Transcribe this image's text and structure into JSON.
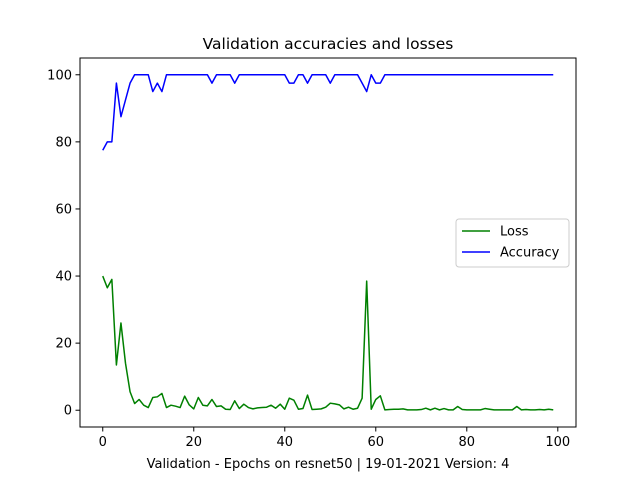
{
  "chart_data": {
    "type": "line",
    "title": "Validation accuracies and losses",
    "xlabel": "Validation - Epochs on resnet50 | 19-01-2021 Version: 4",
    "ylabel": "",
    "xlim": [
      -5,
      104
    ],
    "ylim": [
      -5,
      105
    ],
    "xticks": [
      0,
      20,
      40,
      60,
      80,
      100
    ],
    "yticks": [
      0,
      20,
      40,
      60,
      80,
      100
    ],
    "grid": false,
    "legend_position": "center-right",
    "x": [
      0,
      1,
      2,
      3,
      4,
      5,
      6,
      7,
      8,
      9,
      10,
      11,
      12,
      13,
      14,
      15,
      16,
      17,
      18,
      19,
      20,
      21,
      22,
      23,
      24,
      25,
      26,
      27,
      28,
      29,
      30,
      31,
      32,
      33,
      34,
      35,
      36,
      37,
      38,
      39,
      40,
      41,
      42,
      43,
      44,
      45,
      46,
      47,
      48,
      49,
      50,
      51,
      52,
      53,
      54,
      55,
      56,
      57,
      58,
      59,
      60,
      61,
      62,
      63,
      64,
      65,
      66,
      67,
      68,
      69,
      70,
      71,
      72,
      73,
      74,
      75,
      76,
      77,
      78,
      79,
      80,
      81,
      82,
      83,
      84,
      85,
      86,
      87,
      88,
      89,
      90,
      91,
      92,
      93,
      94,
      95,
      96,
      97,
      98,
      99
    ],
    "series": [
      {
        "name": "Loss",
        "color": "#008000",
        "values": [
          40,
          36.5,
          39,
          13.5,
          26,
          14,
          5.5,
          2,
          3.2,
          1.5,
          0.8,
          3.8,
          4,
          5,
          0.8,
          1.5,
          1.2,
          0.8,
          4.2,
          1.6,
          0.4,
          3.8,
          1.5,
          1.3,
          3.2,
          1.1,
          1.3,
          0.3,
          0.2,
          2.8,
          0.5,
          1.8,
          0.8,
          0.4,
          0.7,
          0.8,
          0.9,
          1.5,
          0.6,
          1.8,
          0.3,
          3.6,
          3,
          0.3,
          0.5,
          4.5,
          0.2,
          0.3,
          0.4,
          0.9,
          2.1,
          1.9,
          1.6,
          0.4,
          0.9,
          0.3,
          0.6,
          3.6,
          38.5,
          0.3,
          3.2,
          4.3,
          0.1,
          0.2,
          0.3,
          0.3,
          0.4,
          0.1,
          0.1,
          0.1,
          0.2,
          0.6,
          0.1,
          0.6,
          0.1,
          0.5,
          0.1,
          0.1,
          1.1,
          0.2,
          0.1,
          0.1,
          0.1,
          0.1,
          0.5,
          0.3,
          0.1,
          0.1,
          0.1,
          0.1,
          0.1,
          1.1,
          0.1,
          0.2,
          0.1,
          0.1,
          0.2,
          0.1,
          0.3,
          0.1
        ]
      },
      {
        "name": "Accuracy",
        "color": "#0000ff",
        "values": [
          77.5,
          80,
          80,
          97.5,
          87.5,
          92.5,
          97.5,
          100,
          100,
          100,
          100,
          95,
          97.5,
          95,
          100,
          100,
          100,
          100,
          100,
          100,
          100,
          100,
          100,
          100,
          97.5,
          100,
          100,
          100,
          100,
          97.5,
          100,
          100,
          100,
          100,
          100,
          100,
          100,
          100,
          100,
          100,
          100,
          97.5,
          97.5,
          100,
          100,
          97.5,
          100,
          100,
          100,
          100,
          97.5,
          100,
          100,
          100,
          100,
          100,
          100,
          97.5,
          95,
          100,
          97.5,
          97.5,
          100,
          100,
          100,
          100,
          100,
          100,
          100,
          100,
          100,
          100,
          100,
          100,
          100,
          100,
          100,
          100,
          100,
          100,
          100,
          100,
          100,
          100,
          100,
          100,
          100,
          100,
          100,
          100,
          100,
          100,
          100,
          100,
          100,
          100,
          100,
          100,
          100,
          100
        ]
      }
    ]
  }
}
